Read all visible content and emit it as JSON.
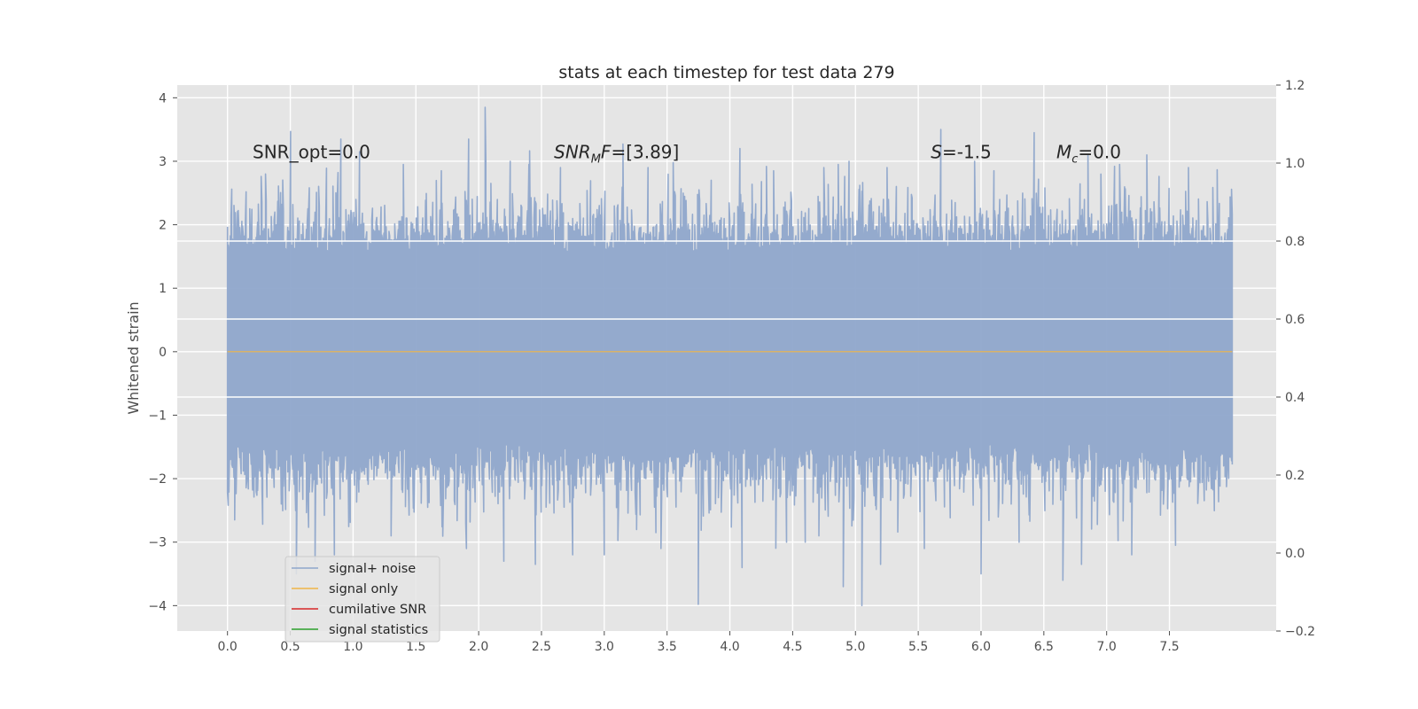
{
  "chart_data": {
    "type": "line",
    "title": "stats at each timestep for test data 279",
    "xlabel": "",
    "ylabel": "Whitened strain",
    "xlim": [
      -0.4,
      8.35
    ],
    "ylim": [
      -4.4,
      4.2
    ],
    "y2lim": [
      -0.2,
      1.2
    ],
    "x_ticks": [
      "0.0",
      "0.5",
      "1.0",
      "1.5",
      "2.0",
      "2.5",
      "3.0",
      "3.5",
      "4.0",
      "4.5",
      "5.0",
      "5.5",
      "6.0",
      "6.5",
      "7.0",
      "7.5"
    ],
    "y_ticks": [
      "4",
      "3",
      "2",
      "1",
      "0",
      "−1",
      "−2",
      "−3",
      "−4"
    ],
    "y2_ticks": [
      "1.2",
      "1.0",
      "0.8",
      "0.6",
      "0.4",
      "0.2",
      "0.0",
      "−0.2"
    ],
    "grid": true,
    "legend_placement": "lower-left",
    "series": [
      {
        "name": "signal+ noise",
        "color": "#8fa6cb",
        "description_values": {
          "x_start": 0.0,
          "x_end": 8.0,
          "band_core": [
            -1.5,
            1.6
          ],
          "max": 3.85,
          "min": -4.0
        }
      },
      {
        "name": "signal only",
        "color": "#f0b547",
        "values_constant": 0.0
      },
      {
        "name": "cumilative SNR",
        "color": "#d62728"
      },
      {
        "name": "signal statistics",
        "color": "#2ca02c"
      }
    ],
    "horizontal_lines_right_axis": [
      0.4,
      0.6,
      0.8
    ],
    "annotations": [
      {
        "id": "snr_opt",
        "text": "SNR_opt=0.0",
        "x": 0.2,
        "y": 3.05
      },
      {
        "id": "snr_mf",
        "text": "=[3.89]",
        "x": 2.6,
        "y": 3.05
      },
      {
        "id": "s",
        "text": "=-1.5",
        "x": 5.6,
        "y": 3.05
      },
      {
        "id": "mc",
        "text": "=0.0",
        "x": 6.6,
        "y": 3.05
      }
    ],
    "annotation_math": {
      "snr_mf_main": "SNR",
      "snr_mf_sub": "M",
      "snr_mf_tail": "F",
      "s_symbol": "S",
      "mc_main": "M",
      "mc_sub": "c"
    },
    "spikes_up": [
      [
        0.5,
        3.47
      ],
      [
        0.9,
        3.35
      ],
      [
        1.4,
        2.95
      ],
      [
        2.05,
        3.85
      ],
      [
        1.92,
        3.35
      ],
      [
        3.15,
        3.27
      ],
      [
        4.08,
        3.2
      ],
      [
        5.68,
        3.5
      ],
      [
        6.42,
        3.45
      ],
      [
        7.32,
        3.1
      ],
      [
        2.65,
        2.9
      ],
      [
        1.05,
        3.15
      ],
      [
        3.55,
        2.98
      ],
      [
        4.75,
        2.9
      ],
      [
        5.95,
        3.0
      ],
      [
        6.85,
        3.1
      ],
      [
        7.1,
        2.95
      ],
      [
        0.3,
        2.8
      ],
      [
        2.4,
        2.95
      ],
      [
        3.85,
        2.7
      ],
      [
        4.35,
        2.85
      ],
      [
        5.25,
        2.9
      ],
      [
        6.1,
        2.85
      ],
      [
        7.65,
        2.9
      ],
      [
        1.7,
        2.85
      ],
      [
        2.25,
        3.0
      ],
      [
        3.35,
        2.9
      ],
      [
        4.95,
        3.0
      ]
    ],
    "spikes_down": [
      [
        3.75,
        -3.98
      ],
      [
        5.05,
        -4.0
      ],
      [
        4.9,
        -3.7
      ],
      [
        6.65,
        -3.6
      ],
      [
        0.55,
        -3.5
      ],
      [
        2.2,
        -3.3
      ],
      [
        6.0,
        -3.5
      ],
      [
        4.1,
        -3.4
      ],
      [
        3.0,
        -3.2
      ],
      [
        6.8,
        -3.35
      ],
      [
        0.85,
        -3.2
      ],
      [
        1.9,
        -3.1
      ],
      [
        7.55,
        -3.05
      ],
      [
        5.2,
        -3.35
      ],
      [
        2.45,
        -3.35
      ],
      [
        1.3,
        -2.9
      ],
      [
        3.45,
        -3.1
      ],
      [
        4.6,
        -3.0
      ],
      [
        5.55,
        -3.1
      ],
      [
        6.3,
        -3.0
      ],
      [
        7.2,
        -3.2
      ],
      [
        0.7,
        -3.3
      ],
      [
        2.75,
        -3.2
      ],
      [
        4.45,
        -3.0
      ]
    ]
  }
}
